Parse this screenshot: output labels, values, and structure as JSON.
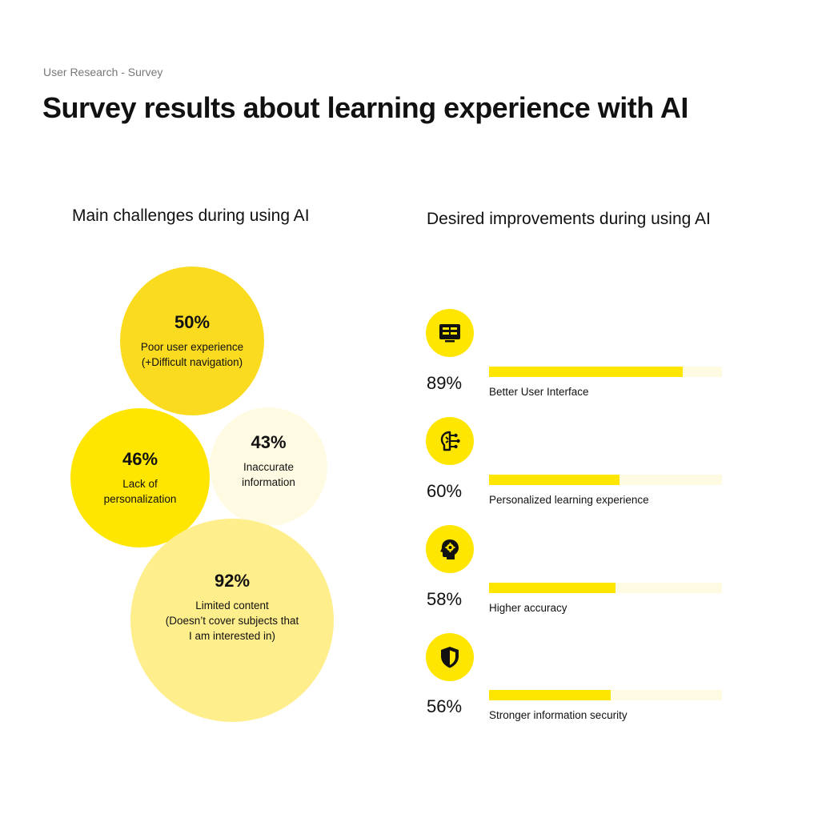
{
  "header": {
    "eyebrow": "User Research - Survey",
    "title": "Survey results about learning experience with AI"
  },
  "chart_data": [
    {
      "type": "bubble",
      "title": "Main challenges during using AI",
      "items": [
        {
          "value": 50,
          "value_label": "50%",
          "label": "Poor user experience\n(+Difficult navigation)",
          "color": "#FADB20"
        },
        {
          "value": 46,
          "value_label": "46%",
          "label": "Lack of\npersonalization",
          "color": "#FFE600"
        },
        {
          "value": 43,
          "value_label": "43%",
          "label": "Inaccurate\ninformation",
          "color": "#FFFBE3"
        },
        {
          "value": 92,
          "value_label": "92%",
          "label": "Limited content\n(Doesn’t cover subjects that\nI am interested in)",
          "color": "#FFEE8C"
        }
      ]
    },
    {
      "type": "bar",
      "orientation": "horizontal",
      "title": "Desired improvements during using AI",
      "xlim": [
        0,
        100
      ],
      "items": [
        {
          "value": 89,
          "value_label": "89%",
          "label": "Better User Interface",
          "icon": "monitor-interface-icon"
        },
        {
          "value": 60,
          "value_label": "60%",
          "label": "Personalized learning experience",
          "icon": "brain-circuit-icon"
        },
        {
          "value": 58,
          "value_label": "58%",
          "label": "Higher accuracy",
          "icon": "head-gear-icon"
        },
        {
          "value": 56,
          "value_label": "56%",
          "label": "Stronger information security",
          "icon": "shield-icon"
        }
      ],
      "colors": {
        "fill": "#FFE600",
        "track": "#FFFBE3"
      }
    }
  ]
}
